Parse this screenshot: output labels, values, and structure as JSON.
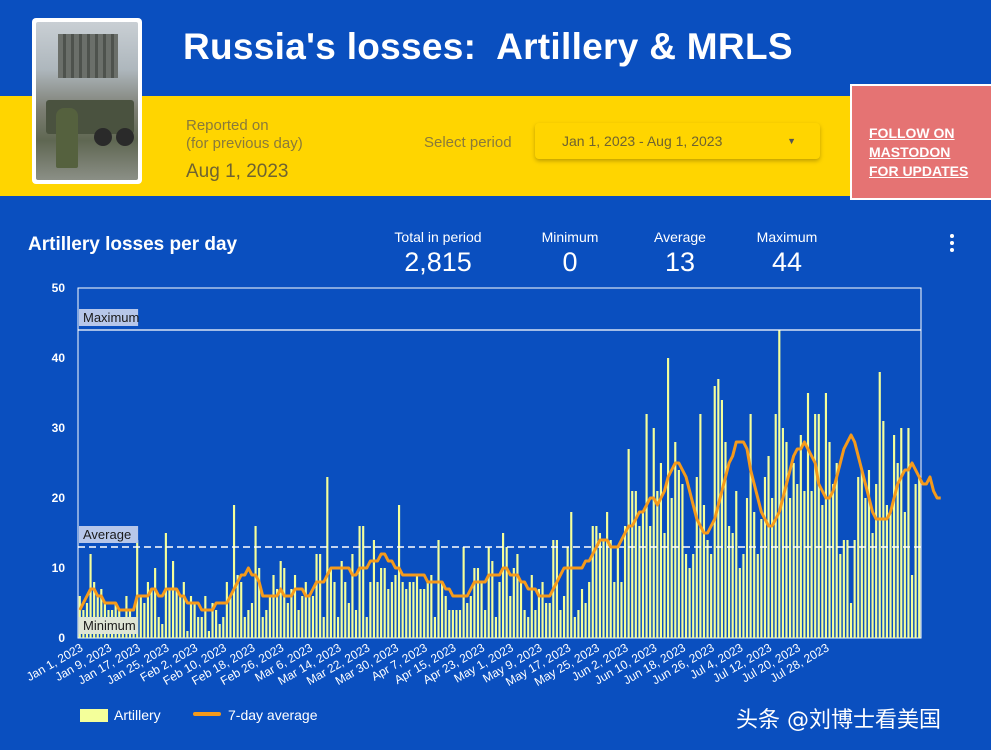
{
  "header": {
    "title": "Russia's losses:  Artillery & MRLS",
    "reported_label_1": "Reported on",
    "reported_label_2": "(for previous day)",
    "reported_date": "Aug 1, 2023",
    "select_label": "Select period",
    "select_value": "Jan 1, 2023 - Aug 1, 2023",
    "follow_line_1": "FOLLOW ON",
    "follow_line_2": "MASTODON",
    "follow_line_3": "FOR UPDATES"
  },
  "stats": {
    "total_label": "Total in period",
    "total_value": "2,815",
    "min_label": "Minimum",
    "min_value": "0",
    "avg_label": "Average",
    "avg_value": "13",
    "max_label": "Maximum",
    "max_value": "44"
  },
  "watermark": "头条 @刘博士看美国",
  "colors": {
    "background": "#0a4fbf",
    "band": "#ffd500",
    "bar": "#f4ff9a",
    "line": "#f59a1b",
    "follow": "#e57373"
  },
  "chart_data": {
    "type": "bar",
    "title": "Artillery losses per day",
    "ylim": [
      0,
      50
    ],
    "yticks": [
      0,
      10,
      20,
      30,
      40,
      50
    ],
    "xtick_labels": [
      "Jan 1, 2023",
      "Jan 9, 2023",
      "Jan 17, 2023",
      "Jan 25, 2023",
      "Feb 2, 2023",
      "Feb 10, 2023",
      "Feb 18, 2023",
      "Feb 26, 2023",
      "Mar 6, 2023",
      "Mar 14, 2023",
      "Mar 22, 2023",
      "Mar 30, 2023",
      "Apr 7, 2023",
      "Apr 15, 2023",
      "Apr 23, 2023",
      "May 1, 2023",
      "May 9, 2023",
      "May 17, 2023",
      "May 25, 2023",
      "Jun 2, 2023",
      "Jun 10, 2023",
      "Jun 18, 2023",
      "Jun 26, 2023",
      "Jul 4, 2023",
      "Jul 12, 2023",
      "Jul 20, 2023",
      "Jul 28, 2023"
    ],
    "reference_lines": [
      {
        "label": "Maximum",
        "value": 44
      },
      {
        "label": "Average",
        "value": 13
      },
      {
        "label": "Minimum",
        "value": 0
      }
    ],
    "series": [
      {
        "name": "Artillery",
        "type": "bar",
        "values": [
          6,
          4,
          5,
          12,
          8,
          6,
          7,
          5,
          4,
          4,
          5,
          4,
          3,
          6,
          4,
          2,
          14,
          6,
          5,
          8,
          7,
          10,
          3,
          2,
          15,
          7,
          11,
          7,
          6,
          8,
          1,
          6,
          5,
          3,
          3,
          6,
          1,
          5,
          4,
          2,
          3,
          8,
          6,
          19,
          9,
          8,
          3,
          4,
          5,
          16,
          10,
          3,
          4,
          6,
          9,
          7,
          11,
          10,
          5,
          7,
          9,
          4,
          6,
          8,
          6,
          6,
          12,
          12,
          3,
          23,
          10,
          8,
          3,
          11,
          8,
          5,
          12,
          4,
          16,
          16,
          3,
          8,
          14,
          8,
          10,
          10,
          7,
          8,
          9,
          19,
          8,
          7,
          8,
          8,
          9,
          7,
          7,
          8,
          9,
          3,
          14,
          8,
          6,
          4,
          4,
          4,
          4,
          13,
          5,
          6,
          10,
          10,
          8,
          4,
          13,
          11,
          3,
          8,
          15,
          13,
          6,
          10,
          12,
          8,
          4,
          3,
          9,
          4,
          7,
          8,
          5,
          5,
          14,
          14,
          4,
          6,
          13,
          18,
          3,
          4,
          7,
          5,
          8,
          16,
          16,
          15,
          14,
          18,
          14,
          8,
          13,
          8,
          16,
          27,
          21,
          21,
          16,
          18,
          32,
          16,
          30,
          21,
          25,
          15,
          40,
          20,
          28,
          24,
          22,
          12,
          10,
          12,
          23,
          32,
          19,
          14,
          12,
          36,
          37,
          34,
          28,
          16,
          15,
          21,
          10,
          12,
          20,
          32,
          18,
          12,
          17,
          23,
          26,
          20,
          32,
          44,
          30,
          28,
          20,
          25,
          22,
          29,
          21,
          35,
          21,
          32,
          32,
          19,
          35,
          28,
          22,
          25,
          12,
          14,
          14,
          5,
          14,
          23,
          24,
          20,
          24,
          15,
          22,
          38,
          31,
          19,
          18,
          29,
          25,
          30,
          18,
          30,
          9,
          22,
          23
        ]
      },
      {
        "name": "7-day average",
        "type": "line",
        "values": [
          4,
          5,
          6,
          7,
          7,
          6,
          6,
          5,
          5,
          5,
          5,
          4,
          4,
          4,
          4,
          4,
          6,
          6,
          6,
          6,
          7,
          7,
          6,
          6,
          7,
          7,
          7,
          7,
          6,
          6,
          5,
          5,
          5,
          5,
          4,
          4,
          4,
          4,
          5,
          5,
          5,
          5,
          6,
          7,
          8,
          9,
          9,
          10,
          9,
          9,
          8,
          6,
          6,
          6,
          6,
          6,
          7,
          6,
          6,
          6,
          7,
          7,
          7,
          6,
          6,
          7,
          8,
          8,
          8,
          9,
          10,
          10,
          10,
          10,
          10,
          10,
          9,
          9,
          10,
          10,
          10,
          11,
          11,
          11,
          12,
          12,
          11,
          11,
          10,
          10,
          9,
          9,
          9,
          9,
          9,
          9,
          9,
          8,
          8,
          8,
          8,
          8,
          7,
          7,
          6,
          6,
          6,
          6,
          6,
          7,
          8,
          8,
          8,
          8,
          9,
          9,
          9,
          9,
          10,
          10,
          9,
          9,
          9,
          8,
          8,
          7,
          7,
          7,
          6,
          6,
          6,
          6,
          7,
          8,
          9,
          10,
          10,
          10,
          10,
          10,
          10,
          11,
          11,
          12,
          13,
          14,
          14,
          14,
          13,
          13,
          13,
          14,
          15,
          16,
          16,
          17,
          18,
          18,
          19,
          20,
          20,
          19,
          20,
          21,
          23,
          24,
          25,
          25,
          24,
          23,
          21,
          19,
          17,
          16,
          15,
          15,
          16,
          17,
          19,
          21,
          23,
          25,
          26,
          28,
          28,
          28,
          27,
          24,
          22,
          20,
          18,
          17,
          16,
          16,
          17,
          18,
          20,
          22,
          24,
          26,
          27,
          27,
          28,
          27,
          26,
          25,
          22,
          21,
          20,
          20,
          21,
          23,
          25,
          27,
          28,
          29,
          28,
          26,
          24,
          22,
          20,
          18,
          17,
          17,
          17,
          17,
          18,
          20,
          22,
          23,
          24,
          24,
          25,
          24,
          23,
          22,
          22,
          23,
          21,
          20,
          20
        ]
      }
    ],
    "legend": [
      "Artillery",
      "7-day average"
    ],
    "legend_position": "bottom-left"
  }
}
